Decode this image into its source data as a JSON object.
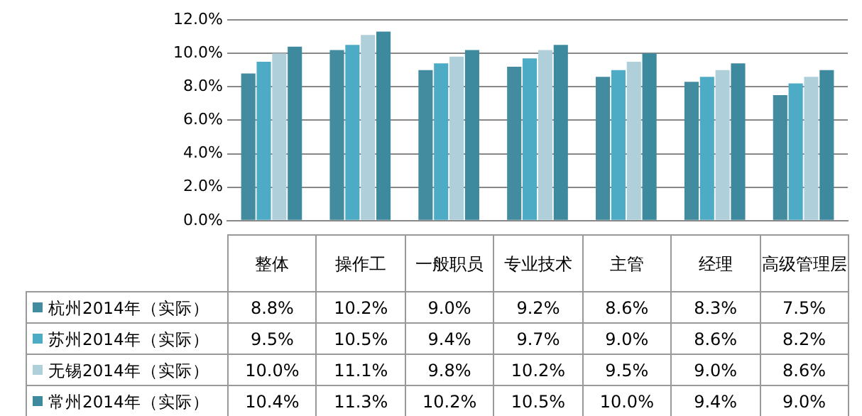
{
  "chart_data": {
    "type": "bar",
    "categories": [
      "整体",
      "操作工",
      "一般职员",
      "专业技术",
      "主管",
      "经理",
      "高级管理层"
    ],
    "series": [
      {
        "name": "杭州2014年（实际）",
        "color": "#438b9e",
        "values": [
          8.8,
          10.2,
          9.0,
          9.2,
          8.6,
          8.3,
          7.5
        ],
        "value_labels": [
          "8.8%",
          "10.2%",
          "9.0%",
          "9.2%",
          "8.6%",
          "8.3%",
          "7.5%"
        ]
      },
      {
        "name": "苏州2014年（实际）",
        "color": "#4eabc5",
        "values": [
          9.5,
          10.5,
          9.4,
          9.7,
          9.0,
          8.6,
          8.2
        ],
        "value_labels": [
          "9.5%",
          "10.5%",
          "9.4%",
          "9.7%",
          "9.0%",
          "8.6%",
          "8.2%"
        ]
      },
      {
        "name": "无锡2014年（实际）",
        "color": "#afd0da",
        "values": [
          10.0,
          11.1,
          9.8,
          10.2,
          9.5,
          9.0,
          8.6
        ],
        "value_labels": [
          "10.0%",
          "11.1%",
          "9.8%",
          "10.2%",
          "9.5%",
          "9.0%",
          "8.6%"
        ]
      },
      {
        "name": "常州2014年（实际）",
        "color": "#3d899e",
        "values": [
          10.4,
          11.3,
          10.2,
          10.5,
          10.0,
          9.4,
          9.0
        ],
        "value_labels": [
          "10.4%",
          "11.3%",
          "10.2%",
          "10.5%",
          "10.0%",
          "9.4%",
          "9.0%"
        ]
      }
    ],
    "ylim": [
      0,
      12
    ],
    "yticks": [
      {
        "value": 0,
        "label": "0.0%"
      },
      {
        "value": 2,
        "label": "2.0%"
      },
      {
        "value": 4,
        "label": "4.0%"
      },
      {
        "value": 6,
        "label": "6.0%"
      },
      {
        "value": 8,
        "label": "8.0%"
      },
      {
        "value": 10,
        "label": "10.0%"
      },
      {
        "value": 12,
        "label": "12.0%"
      }
    ],
    "grid": "y",
    "legend": "bottom left",
    "tick_labels": "y"
  }
}
